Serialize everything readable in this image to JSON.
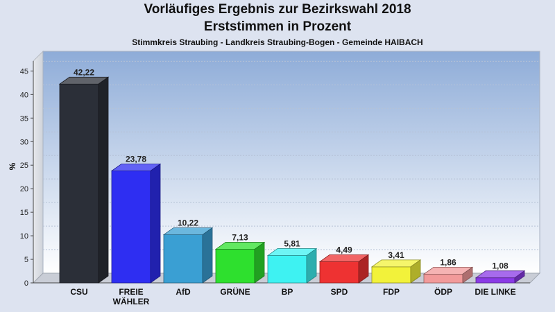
{
  "chart_data": {
    "type": "bar",
    "title": "Vorläufiges Ergebnis zur Bezirkswahl 2018",
    "subtitle": "Erststimmen in Prozent",
    "subsubtitle": "Stimmkreis Straubing - Landkreis Straubing-Bogen - Gemeinde HAIBACH",
    "ylabel": "%",
    "xlabel": "",
    "ylim": [
      0,
      48
    ],
    "yticks": [
      0,
      5,
      10,
      15,
      20,
      25,
      30,
      35,
      40,
      45
    ],
    "grid": true,
    "categories": [
      [
        "CSU"
      ],
      [
        "FREIE",
        "WÄHLER"
      ],
      [
        "AfD"
      ],
      [
        "GRÜNE"
      ],
      [
        "BP"
      ],
      [
        "SPD"
      ],
      [
        "FDP"
      ],
      [
        "ÖDP"
      ],
      [
        "DIE LINKE"
      ]
    ],
    "values": [
      42.22,
      23.78,
      10.22,
      7.13,
      5.81,
      4.49,
      3.41,
      1.86,
      1.08
    ],
    "value_labels": [
      "42,22",
      "23,78",
      "10,22",
      "7,13",
      "5,81",
      "4,49",
      "3,41",
      "1,86",
      "1,08"
    ],
    "colors": [
      "#2b2f38",
      "#2e2ef2",
      "#3a9fd3",
      "#2ee02e",
      "#3ef2f2",
      "#ee3232",
      "#f2f23a",
      "#f29a9a",
      "#8a3ae6"
    ]
  }
}
